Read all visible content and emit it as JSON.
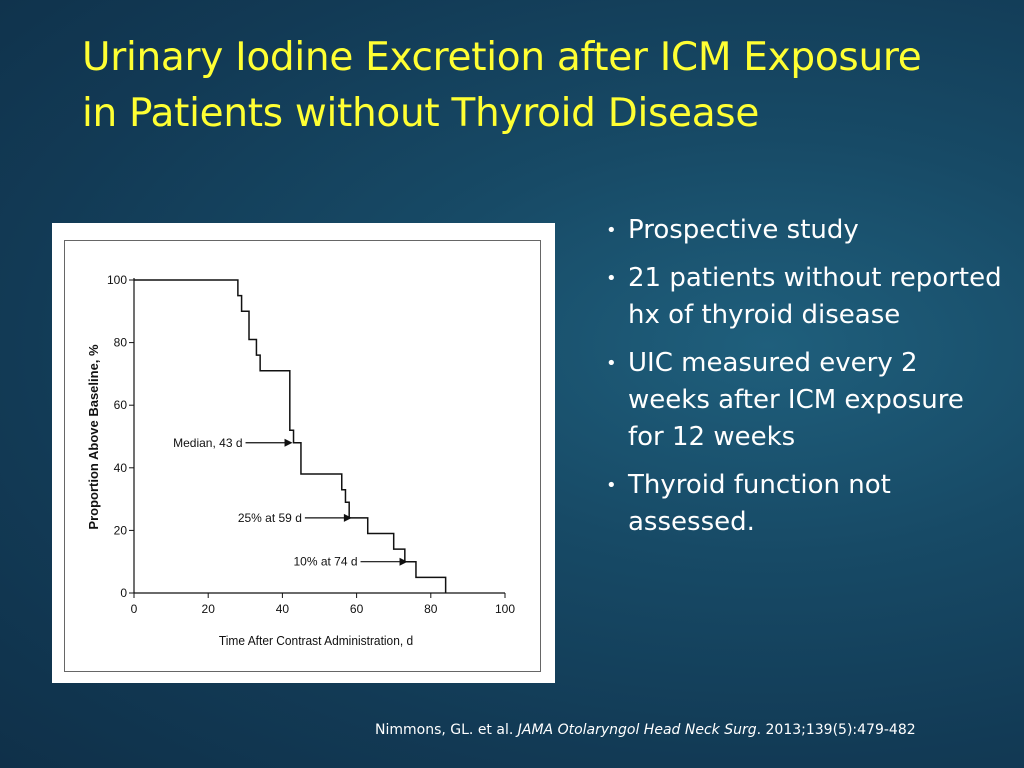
{
  "slide": {
    "title": "Urinary Iodine Excretion after ICM Exposure in Patients without Thyroid Disease",
    "bullets": [
      "Prospective study",
      "21 patients without reported hx of thyroid disease",
      "UIC measured every 2 weeks after ICM exposure for 12 weeks",
      "Thyroid function not assessed."
    ],
    "citation": {
      "authors": "Nimmons, GL. et al.",
      "journal": "JAMA Otolaryngol Head Neck Surg",
      "details": ".  2013;139(5):479-482"
    }
  },
  "colors": {
    "title": "#ffff33",
    "text": "#ffffff",
    "background": "#174a66",
    "plot_line": "#111111"
  },
  "chart_data": {
    "type": "line",
    "style": "step (Kaplan-Meier)",
    "title": "",
    "xlabel": "Time After Contrast Administration, d",
    "ylabel": "Proportion Above Baseline, %",
    "xlim": [
      0,
      100
    ],
    "ylim": [
      0,
      100
    ],
    "x_ticks": [
      0,
      20,
      40,
      60,
      80,
      100
    ],
    "y_ticks": [
      0,
      20,
      40,
      60,
      80,
      100
    ],
    "grid": false,
    "legend": "none",
    "series": [
      {
        "x": [
          0,
          28,
          29,
          31,
          33,
          34,
          35,
          42,
          43,
          45,
          56,
          57,
          58,
          59,
          63,
          70,
          73,
          76,
          84
        ],
        "y": [
          100,
          95,
          90,
          81,
          76,
          71,
          71,
          52,
          48,
          38,
          33,
          29,
          24,
          24,
          19,
          14,
          10,
          5,
          0
        ]
      }
    ],
    "annotations": [
      {
        "text": "Median, 43 d",
        "x": 43,
        "y": 48
      },
      {
        "text": "25% at 59 d",
        "x": 59,
        "y": 24
      },
      {
        "text": "10% at 74 d",
        "x": 74,
        "y": 10
      }
    ]
  }
}
